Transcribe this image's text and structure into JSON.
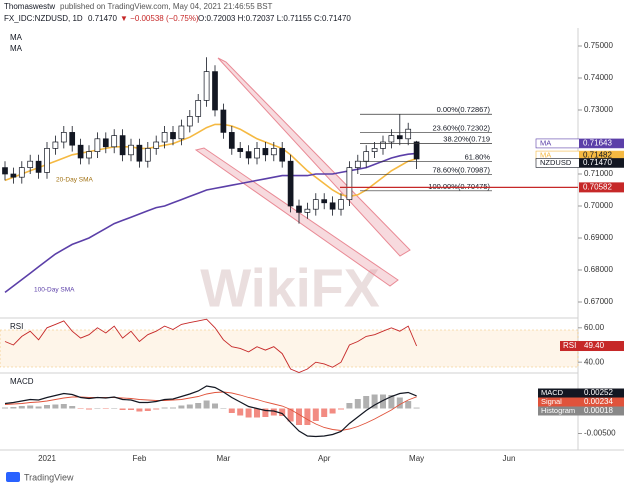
{
  "header": {
    "author": "Thomaswestw",
    "published": "published on TradingView.com, May 04, 2021 21:46:55 BST",
    "symbol": "FX_IDC:NZDUSD, 1D",
    "last": "0.71470",
    "change": "▼ −0.00538 (−0.75%)",
    "ohlc": "O:0.72003 H:0.72037 L:0.71155 C:0.71470"
  },
  "indicator_labels": [
    "MA",
    "MA"
  ],
  "watermark": "WikiFX",
  "footer": "TradingView",
  "chart_data": [
    {
      "type": "candlestick",
      "categories": [
        null,
        null,
        null,
        null,
        null,
        "2021",
        null,
        null,
        null,
        null,
        null,
        null,
        null,
        null,
        null,
        null,
        "Feb",
        null,
        null,
        null,
        null,
        null,
        null,
        null,
        null,
        null,
        "Mar",
        null,
        null,
        null,
        null,
        null,
        null,
        null,
        null,
        null,
        null,
        null,
        "Apr",
        null,
        null,
        null,
        null,
        null,
        null,
        null,
        null,
        null,
        null,
        "May",
        null,
        null,
        null,
        null,
        null,
        null,
        null,
        null,
        null,
        null,
        "Jun"
      ],
      "open": [
        0.712,
        0.71,
        0.709,
        0.712,
        0.714,
        0.7105,
        0.718,
        0.72,
        0.723,
        0.719,
        0.715,
        0.717,
        0.721,
        0.7185,
        0.722,
        0.716,
        0.719,
        0.714,
        0.718,
        0.72,
        0.723,
        0.721,
        0.725,
        0.728,
        0.733,
        0.742,
        0.73,
        0.723,
        0.718,
        0.717,
        0.715,
        0.718,
        0.716,
        0.718,
        0.714,
        0.7,
        0.698,
        0.699,
        0.702,
        0.701,
        0.699,
        0.702,
        0.712,
        0.714,
        0.717,
        0.718,
        0.72,
        0.722,
        0.721,
        0.72003,
        null,
        null,
        null,
        null,
        null,
        null,
        null,
        null,
        null,
        null,
        null
      ],
      "high": [
        0.714,
        0.712,
        0.714,
        0.716,
        0.716,
        0.72,
        0.722,
        0.725,
        0.725,
        0.721,
        0.719,
        0.723,
        0.723,
        0.724,
        0.724,
        0.721,
        0.721,
        0.72,
        0.722,
        0.725,
        0.725,
        0.727,
        0.73,
        0.735,
        0.7465,
        0.744,
        0.732,
        0.725,
        0.72,
        0.719,
        0.72,
        0.72,
        0.72,
        0.72,
        0.716,
        0.702,
        0.701,
        0.704,
        0.704,
        0.703,
        0.704,
        0.714,
        0.716,
        0.719,
        0.72,
        0.722,
        0.724,
        0.72867,
        0.726,
        0.72037,
        null,
        null,
        null,
        null,
        null,
        null,
        null,
        null,
        null,
        null,
        null
      ],
      "low": [
        0.708,
        0.707,
        0.707,
        0.71,
        0.7085,
        0.7085,
        0.716,
        0.718,
        0.717,
        0.713,
        0.713,
        0.715,
        0.7165,
        0.7165,
        0.714,
        0.714,
        0.712,
        0.712,
        0.716,
        0.718,
        0.719,
        0.719,
        0.723,
        0.726,
        0.731,
        0.728,
        0.721,
        0.716,
        0.715,
        0.713,
        0.713,
        0.714,
        0.714,
        0.712,
        0.698,
        0.6945,
        0.696,
        0.697,
        0.699,
        0.697,
        0.697,
        0.7,
        0.71,
        0.712,
        0.715,
        0.716,
        0.718,
        0.719,
        0.719,
        0.71155,
        null,
        null,
        null,
        null,
        null,
        null,
        null,
        null,
        null,
        null,
        null
      ],
      "close": [
        0.71,
        0.709,
        0.712,
        0.714,
        0.7105,
        0.718,
        0.72,
        0.723,
        0.719,
        0.715,
        0.717,
        0.721,
        0.7185,
        0.722,
        0.716,
        0.719,
        0.714,
        0.718,
        0.72,
        0.723,
        0.721,
        0.725,
        0.728,
        0.733,
        0.742,
        0.73,
        0.723,
        0.718,
        0.717,
        0.715,
        0.718,
        0.716,
        0.718,
        0.714,
        0.7,
        0.698,
        0.699,
        0.702,
        0.701,
        0.699,
        0.702,
        0.712,
        0.714,
        0.717,
        0.718,
        0.72,
        0.722,
        0.721,
        0.724,
        0.7147,
        null,
        null,
        null,
        null,
        null,
        null,
        null,
        null,
        null,
        null,
        null
      ],
      "series": [
        {
          "name": "20-Day SMA",
          "color": "#f5b942",
          "values": [
            0.708,
            0.709,
            0.71,
            0.711,
            0.712,
            0.713,
            0.714,
            0.715,
            0.716,
            0.7165,
            0.717,
            0.7175,
            0.718,
            0.7185,
            0.7185,
            0.7185,
            0.718,
            0.718,
            0.7185,
            0.719,
            0.7195,
            0.7205,
            0.7215,
            0.723,
            0.7245,
            0.7255,
            0.7255,
            0.725,
            0.724,
            0.7225,
            0.721,
            0.72,
            0.719,
            0.718,
            0.716,
            0.7135,
            0.711,
            0.709,
            0.707,
            0.705,
            0.7035,
            0.703,
            0.7035,
            0.705,
            0.707,
            0.709,
            0.711,
            0.7125,
            0.714,
            0.71482,
            null,
            null,
            null,
            null,
            null,
            null,
            null,
            null,
            null,
            null,
            null
          ]
        },
        {
          "name": "100-Day SMA",
          "color": "#5b3fa8",
          "values": [
            0.673,
            0.675,
            0.677,
            0.679,
            0.681,
            0.683,
            0.685,
            0.6865,
            0.688,
            0.689,
            0.69,
            0.6915,
            0.693,
            0.6945,
            0.6955,
            0.6965,
            0.6975,
            0.6985,
            0.6995,
            0.7,
            0.701,
            0.702,
            0.703,
            0.704,
            0.705,
            0.7055,
            0.706,
            0.7065,
            0.707,
            0.7075,
            0.708,
            0.7085,
            0.709,
            0.7095,
            0.7095,
            0.7095,
            0.7095,
            0.71,
            0.71,
            0.71,
            0.7105,
            0.711,
            0.7115,
            0.712,
            0.713,
            0.714,
            0.715,
            0.7157,
            0.7162,
            0.71643,
            null,
            null,
            null,
            null,
            null,
            null,
            null,
            null,
            null,
            null,
            null
          ]
        }
      ],
      "ylim": [
        0.665,
        0.755
      ],
      "yticks": [
        {
          "value": 0.75,
          "label": "0.75000"
        },
        {
          "value": 0.74,
          "label": "0.74000"
        },
        {
          "value": 0.73,
          "label": "0.73000"
        },
        {
          "value": 0.71,
          "label": "0.71000"
        },
        {
          "value": 0.7,
          "label": "0.70000"
        },
        {
          "value": 0.69,
          "label": "0.69000"
        },
        {
          "value": 0.68,
          "label": "0.68000"
        },
        {
          "value": 0.67,
          "label": "0.67000"
        }
      ],
      "fib_levels": [
        {
          "label": "0.00%(0.72867)",
          "value": 0.72867
        },
        {
          "label": "23.60%(0.72302)",
          "value": 0.72302
        },
        {
          "label": "38.20%(0.719",
          "value": 0.71953
        },
        {
          "label": "61.80%",
          "value": 0.71389
        },
        {
          "label": "78.60%(0.70987)",
          "value": 0.70987
        },
        {
          "label": "100.00%(0.70475)",
          "value": 0.70475
        }
      ],
      "price_badges": [
        {
          "name": "MA",
          "label": "0.71643",
          "value": 0.71643,
          "color": "#5b3fa8"
        },
        {
          "name": "MA",
          "label": "0.71482",
          "value": 0.71482,
          "color": "#f5b942"
        },
        {
          "name": "NZDUSD",
          "label": "0.71470",
          "value": 0.7147,
          "color": "#131722"
        }
      ],
      "hline": {
        "label": "0.70582",
        "value": 0.70582,
        "color": "#c62828"
      }
    },
    {
      "type": "line",
      "title": "RSI",
      "series": [
        {
          "name": "RSI",
          "color": "#c62828",
          "values": [
            52,
            50,
            55,
            58,
            53,
            60,
            62,
            64,
            58,
            54,
            56,
            60,
            57,
            61,
            54,
            58,
            52,
            56,
            58,
            61,
            59,
            62,
            63,
            64,
            65,
            60,
            53,
            49,
            48,
            46,
            49,
            47,
            49,
            45,
            36,
            34,
            36,
            40,
            39,
            37,
            40,
            50,
            52,
            55,
            56,
            58,
            60,
            58,
            61,
            49.4,
            null,
            null,
            null,
            null,
            null,
            null,
            null,
            null,
            null,
            null,
            null
          ]
        }
      ],
      "last_label": "49.40",
      "ylim": [
        33.7,
        65.7
      ],
      "yticks": [
        {
          "value": 60,
          "label": "60.00"
        },
        {
          "value": 40,
          "label": "40.00"
        }
      ]
    },
    {
      "type": "macd",
      "title": "MACD",
      "series": [
        {
          "name": "MACD",
          "color": "#131722",
          "label": "0.00252",
          "values": [
            0.001,
            0.0012,
            0.0015,
            0.0018,
            0.0017,
            0.0022,
            0.0026,
            0.003,
            0.0028,
            0.0022,
            0.002,
            0.0022,
            0.0021,
            0.0023,
            0.0018,
            0.0017,
            0.0012,
            0.0012,
            0.0014,
            0.0018,
            0.0019,
            0.0024,
            0.0029,
            0.0035,
            0.0045,
            0.0042,
            0.0033,
            0.0022,
            0.0013,
            0.0004,
            0,
            -0.0004,
            -0.0005,
            -0.001,
            -0.0028,
            -0.0045,
            -0.0055,
            -0.0056,
            -0.0055,
            -0.0052,
            -0.0046,
            -0.003,
            -0.0017,
            -0.0004,
            0.0007,
            0.0016,
            0.0024,
            0.003,
            0.0032,
            0.00252,
            null,
            null,
            null,
            null,
            null,
            null,
            null,
            null,
            null,
            null,
            null
          ]
        },
        {
          "name": "Signal",
          "color": "#e0533b",
          "label": "0.00234",
          "values": [
            0.0008,
            0.0009,
            0.001,
            0.0012,
            0.0013,
            0.0015,
            0.0018,
            0.0021,
            0.0023,
            0.0023,
            0.0022,
            0.0022,
            0.0022,
            0.0022,
            0.0021,
            0.002,
            0.0018,
            0.0017,
            0.0016,
            0.0016,
            0.0017,
            0.0018,
            0.0021,
            0.0024,
            0.0029,
            0.0032,
            0.0033,
            0.0031,
            0.0027,
            0.0022,
            0.0018,
            0.0013,
            0.0009,
            0.0005,
            -0.0002,
            -0.0012,
            -0.0022,
            -0.0031,
            -0.0038,
            -0.0042,
            -0.0044,
            -0.0041,
            -0.0036,
            -0.0029,
            -0.0021,
            -0.0012,
            -0.0003,
            0.0008,
            0.0017,
            0.00234,
            null,
            null,
            null,
            null,
            null,
            null,
            null,
            null,
            null,
            null,
            null
          ]
        },
        {
          "name": "Histogram",
          "color": "#9e9e9e",
          "label": "0.00018",
          "values": [
            0.0002,
            0.0003,
            0.0005,
            0.0006,
            0.0004,
            0.0007,
            0.0008,
            0.0009,
            0.0005,
            -0.0001,
            -0.0002,
            0,
            -0.0001,
            0.0001,
            -0.0003,
            -0.0003,
            -0.0006,
            -0.0005,
            -0.0002,
            0.0002,
            0.0002,
            0.0006,
            0.0008,
            0.0011,
            0.0016,
            0.001,
            0,
            -0.0009,
            -0.0014,
            -0.0018,
            -0.0018,
            -0.0017,
            -0.0014,
            -0.0015,
            -0.0026,
            -0.0033,
            -0.0033,
            -0.0025,
            -0.0017,
            -0.001,
            -0.0002,
            0.0011,
            0.0019,
            0.0025,
            0.0028,
            0.0028,
            0.0027,
            0.0022,
            0.0015,
            0.00018,
            null,
            null,
            null,
            null,
            null,
            null,
            null,
            null,
            null,
            null,
            null
          ]
        }
      ],
      "ylim": [
        -0.0079,
        0.0071
      ],
      "yticks": [
        {
          "value": -0.005,
          "label": "-0.00500"
        }
      ]
    }
  ]
}
